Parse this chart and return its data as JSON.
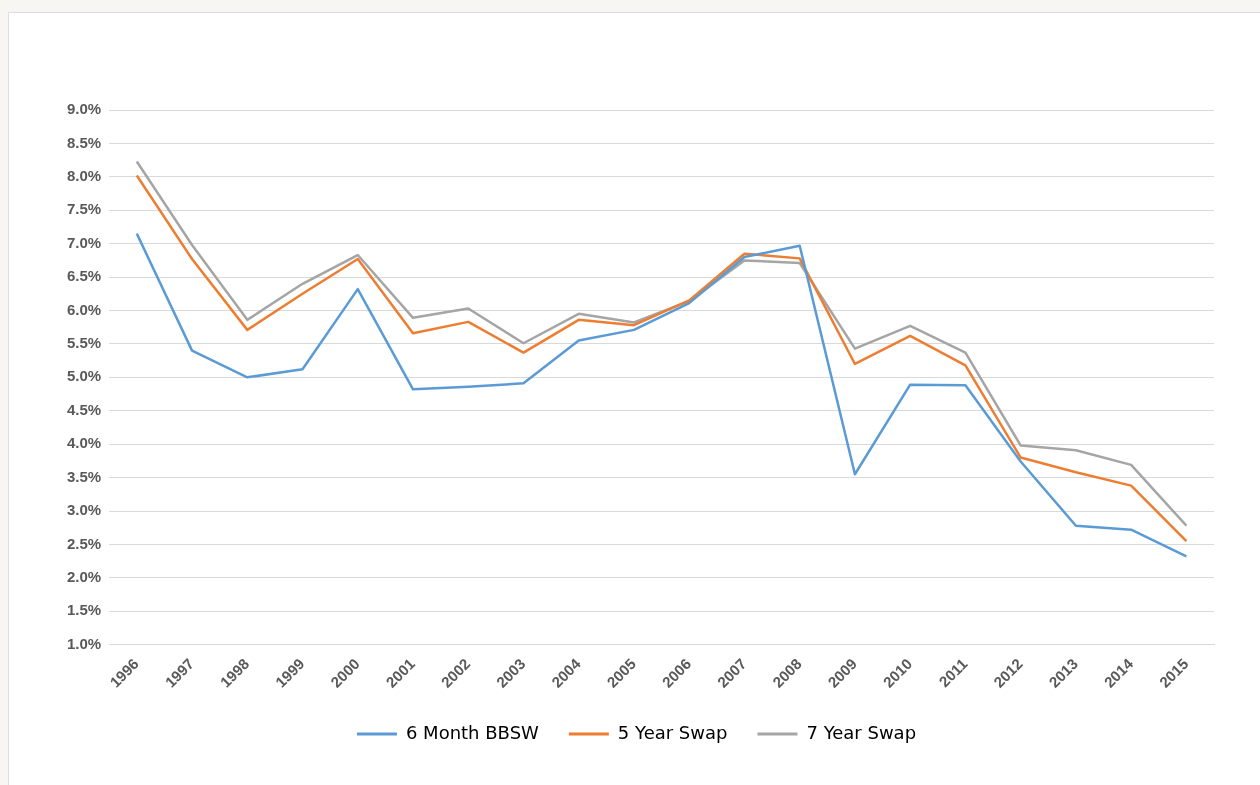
{
  "chart_data": {
    "type": "line",
    "categories": [
      "1996",
      "1997",
      "1998",
      "1999",
      "2000",
      "2001",
      "2002",
      "2003",
      "2004",
      "2005",
      "2006",
      "2007",
      "2008",
      "2009",
      "2010",
      "2011",
      "2012",
      "2013",
      "2014",
      "2015"
    ],
    "series": [
      {
        "name": "6 Month BBSW",
        "color": "#5b9bd5",
        "values": [
          7.15,
          5.4,
          5.0,
          5.12,
          6.32,
          4.82,
          4.86,
          4.91,
          5.55,
          5.71,
          6.11,
          6.8,
          6.97,
          3.55,
          4.89,
          4.88,
          3.74,
          2.78,
          2.72,
          2.32
        ]
      },
      {
        "name": "5 Year Swap",
        "color": "#ed7d31",
        "values": [
          8.02,
          6.77,
          5.71,
          6.25,
          6.77,
          5.66,
          5.83,
          5.37,
          5.86,
          5.78,
          6.15,
          6.85,
          6.78,
          5.2,
          5.62,
          5.18,
          3.8,
          3.58,
          3.38,
          2.55
        ]
      },
      {
        "name": "7 Year Swap",
        "color": "#a5a5a5",
        "values": [
          8.23,
          6.98,
          5.86,
          6.4,
          6.83,
          5.89,
          6.03,
          5.51,
          5.95,
          5.82,
          6.14,
          6.75,
          6.71,
          5.43,
          5.77,
          5.37,
          3.98,
          3.91,
          3.69,
          2.78
        ]
      }
    ],
    "ylim": [
      1,
      9
    ],
    "yticks": [
      {
        "value": 1,
        "label": "1.0%"
      },
      {
        "value": 1.5,
        "label": "1.5%"
      },
      {
        "value": 2,
        "label": "2.0%"
      },
      {
        "value": 2.5,
        "label": "2.5%"
      },
      {
        "value": 3,
        "label": "3.0%"
      },
      {
        "value": 3.5,
        "label": "3.5%"
      },
      {
        "value": 4,
        "label": "4.0%"
      },
      {
        "value": 4.5,
        "label": "4.5%"
      },
      {
        "value": 5,
        "label": "5.0%"
      },
      {
        "value": 5.5,
        "label": "5.5%"
      },
      {
        "value": 6,
        "label": "6.0%"
      },
      {
        "value": 6.5,
        "label": "6.5%"
      },
      {
        "value": 7,
        "label": "7.0%"
      },
      {
        "value": 7.5,
        "label": "7.5%"
      },
      {
        "value": 8,
        "label": "8.0%"
      },
      {
        "value": 8.5,
        "label": "8.5%"
      },
      {
        "value": 9,
        "label": "9.0%"
      }
    ],
    "grid": "y",
    "legend": "bottom",
    "marker": "none",
    "line_style": "solid"
  }
}
